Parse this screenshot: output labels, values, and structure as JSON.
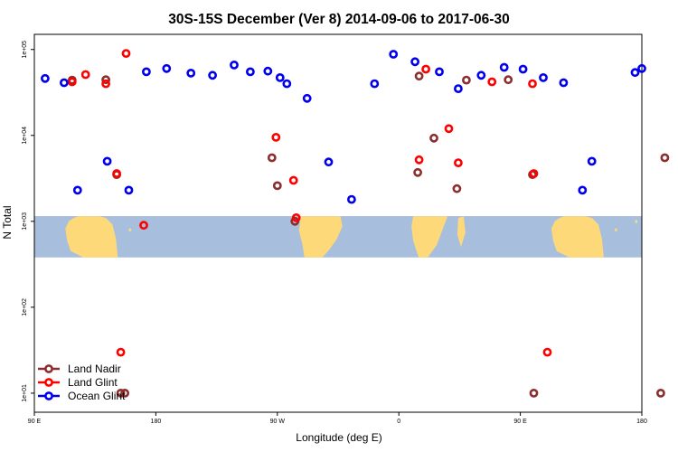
{
  "chart_data": {
    "type": "scatter",
    "title": "30S-15S December (Ver 8)   2014-09-06 to 2017-06-30",
    "xlabel": "Longitude (deg E)",
    "ylabel": "N Total",
    "xlim": [
      90,
      540
    ],
    "ylim": [
      6,
      150000
    ],
    "y_scale": "log",
    "x_ticks": [
      {
        "value": 90,
        "label": "90 E"
      },
      {
        "value": 180,
        "label": "180"
      },
      {
        "value": 270,
        "label": "90 W"
      },
      {
        "value": 360,
        "label": "0"
      },
      {
        "value": 450,
        "label": "90 E"
      },
      {
        "value": 540,
        "label": "180"
      }
    ],
    "y_ticks": [
      {
        "value": 10,
        "label": "1e+01"
      },
      {
        "value": 100,
        "label": "1e+02"
      },
      {
        "value": 1000,
        "label": "1e+03"
      },
      {
        "value": 10000,
        "label": "1e+04"
      },
      {
        "value": 100000,
        "label": "1e+05"
      }
    ],
    "map_strip": {
      "y_range": [
        380,
        1150
      ],
      "ocean_color": "#a7bfdd",
      "land_color": "#fdd979"
    },
    "legend_position": "bottom-left",
    "series": [
      {
        "name": "Land Nadir",
        "color": "#8b2e2e",
        "x": [
          118,
          143,
          151,
          154,
          157,
          266,
          270,
          283,
          374,
          375,
          386,
          403,
          410,
          441,
          459,
          460,
          554,
          557
        ],
        "y": [
          44000,
          44500,
          3500,
          10,
          10,
          5500,
          2600,
          1000,
          3700,
          49000,
          9300,
          2400,
          44000,
          44500,
          3500,
          10,
          10,
          5500
        ]
      },
      {
        "name": "Land Glint",
        "color": "#ff0000",
        "x": [
          118,
          128,
          143,
          151,
          154,
          158,
          171,
          269,
          282,
          284,
          375,
          380,
          397,
          404,
          429,
          459,
          460,
          470
        ],
        "y": [
          42000,
          51000,
          40000,
          3600,
          30,
          90000,
          900,
          9500,
          3000,
          1100,
          5200,
          59000,
          12000,
          4800,
          42000,
          40000,
          3600,
          30
        ]
      },
      {
        "name": "Ocean Glint",
        "color": "#0000ee",
        "x": [
          98,
          112,
          122,
          144,
          160,
          173,
          188,
          206,
          222,
          238,
          250,
          263,
          272,
          277,
          292,
          308,
          325,
          342,
          356,
          372,
          390,
          404,
          421,
          438,
          452,
          467,
          482,
          496,
          503,
          535,
          540
        ],
        "y": [
          46000,
          41000,
          2300,
          5000,
          2300,
          55000,
          60000,
          53000,
          50000,
          66000,
          55000,
          56000,
          47000,
          40000,
          27000,
          4900,
          1800,
          40000,
          88000,
          72000,
          55000,
          35000,
          50000,
          62000,
          59000,
          47000,
          41000,
          2300,
          5000,
          54000,
          60000
        ]
      }
    ]
  }
}
